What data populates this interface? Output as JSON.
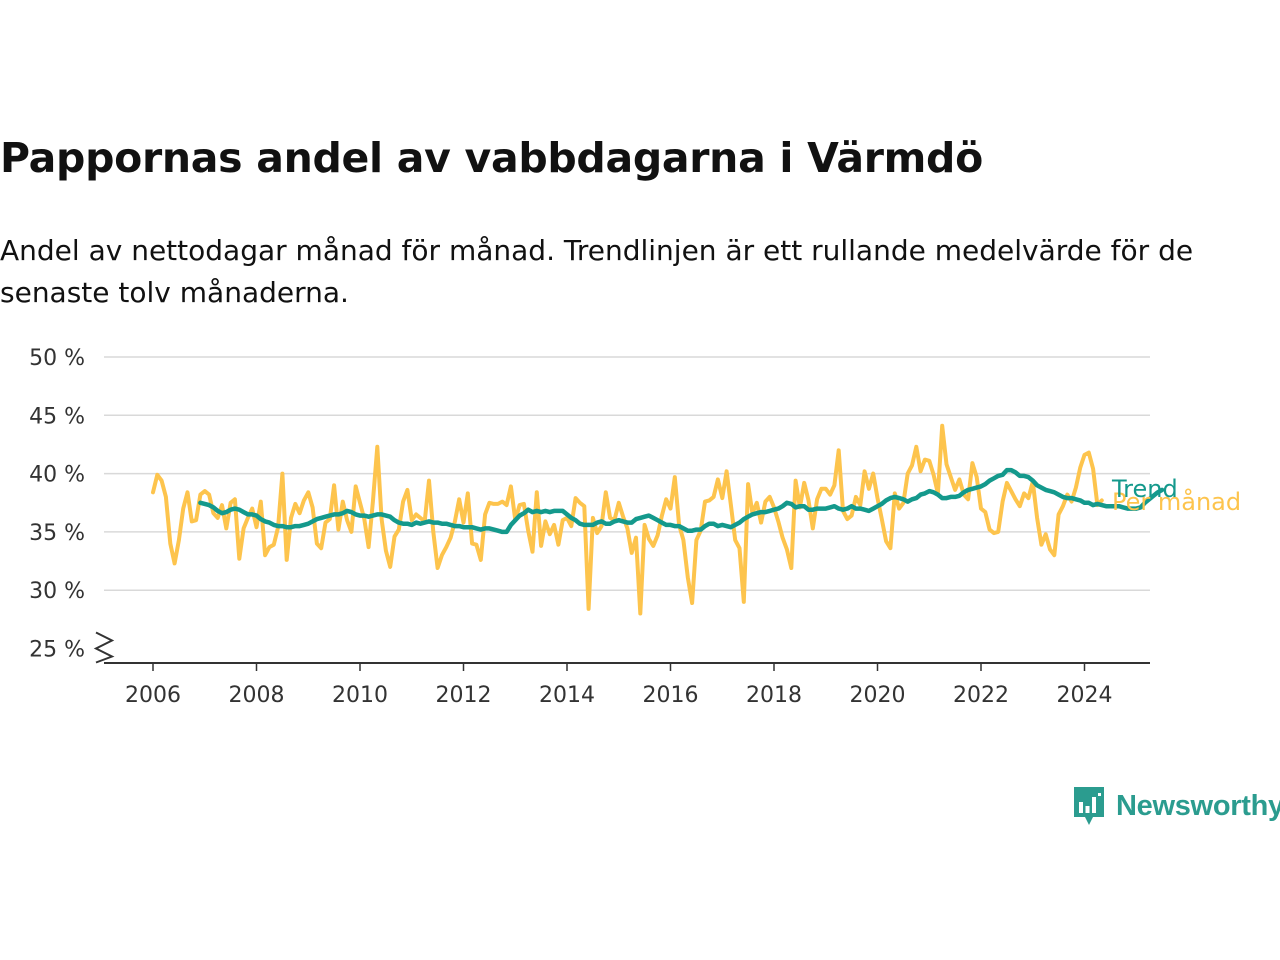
{
  "page": {
    "title": "Pappornas andel av vabbdagarna i Värmdö",
    "subtitle": "Andel av nettodagar månad för månad. Trendlinjen är ett rullande medelvärde för de senaste tolv månaderna.",
    "brand": "Newsworthy"
  },
  "colors": {
    "trend": "#14998c",
    "monthly": "#fdc44d",
    "grid": "#d9d9d9",
    "axis": "#333333"
  },
  "icons": {
    "brand_logo": "bar-chart-speech-bubble-icon",
    "axis_break": "zigzag-axis-break-icon"
  },
  "chart_data": {
    "type": "line",
    "x_type": "month",
    "x_ticks": [
      "2006",
      "2008",
      "2010",
      "2012",
      "2014",
      "2016",
      "2018",
      "2020",
      "2022",
      "2024"
    ],
    "y_ticks": [
      "25 %",
      "30 %",
      "35 %",
      "40 %",
      "45 %",
      "50 %"
    ],
    "y_tick_values": [
      25,
      30,
      35,
      40,
      45,
      50
    ],
    "ylim": [
      24,
      50
    ],
    "y_axis_break": true,
    "grid": "horizontal",
    "legend": "inline labels at line ends (right)",
    "xlabel": "",
    "ylabel": "",
    "series": [
      {
        "name": "Per månad",
        "color": "#fdc44d",
        "start": "2006-01",
        "values": [
          38.4,
          39.9,
          39.4,
          38.0,
          34.0,
          32.3,
          34.3,
          37.0,
          38.4,
          35.9,
          36.0,
          38.2,
          38.5,
          38.2,
          36.6,
          36.2,
          37.3,
          35.3,
          37.5,
          37.8,
          32.7,
          35.3,
          36.2,
          37.0,
          35.4,
          37.6,
          33.0,
          33.7,
          33.9,
          35.4,
          40.0,
          32.6,
          36.2,
          37.4,
          36.6,
          37.7,
          38.4,
          37.1,
          34.0,
          33.6,
          35.8,
          36.1,
          39.0,
          35.2,
          37.6,
          36.0,
          35.0,
          38.9,
          37.5,
          36.1,
          33.7,
          37.6,
          42.3,
          36.1,
          33.4,
          32.0,
          34.6,
          35.2,
          37.6,
          38.6,
          36.0,
          36.5,
          36.2,
          35.9,
          39.4,
          35.0,
          31.9,
          33.0,
          33.7,
          34.5,
          35.9,
          37.8,
          35.8,
          38.3,
          34.0,
          33.9,
          32.6,
          36.5,
          37.5,
          37.4,
          37.4,
          37.6,
          37.3,
          38.9,
          36.0,
          37.3,
          37.4,
          35.1,
          33.3,
          38.4,
          33.8,
          35.9,
          34.8,
          35.6,
          33.9,
          36.0,
          36.2,
          35.5,
          37.9,
          37.5,
          37.2,
          28.4,
          36.2,
          34.9,
          35.5,
          38.4,
          36.2,
          36.0,
          37.5,
          36.3,
          35.3,
          33.2,
          34.5,
          28.0,
          35.6,
          34.4,
          33.8,
          34.7,
          36.4,
          37.8,
          37.0,
          39.7,
          35.6,
          34.3,
          31.1,
          28.9,
          34.3,
          35.1,
          37.6,
          37.7,
          38.0,
          39.5,
          37.9,
          40.2,
          37.3,
          34.3,
          33.6,
          29.0,
          39.1,
          36.6,
          37.5,
          35.8,
          37.6,
          38.0,
          37.1,
          35.9,
          34.5,
          33.5,
          31.9,
          39.4,
          37.1,
          39.2,
          37.7,
          35.3,
          37.8,
          38.7,
          38.7,
          38.2,
          39.0,
          42.0,
          36.8,
          36.1,
          36.4,
          38.0,
          37.3,
          40.2,
          38.7,
          40.0,
          37.9,
          36.1,
          34.2,
          33.6,
          38.3,
          37.0,
          37.5,
          40.0,
          40.7,
          42.3,
          40.2,
          41.2,
          41.1,
          39.9,
          38.3,
          44.1,
          40.8,
          39.7,
          38.6,
          39.5,
          38.2,
          37.8,
          40.9,
          39.7,
          37.0,
          36.7,
          35.2,
          34.9,
          35.0,
          37.6,
          39.2,
          38.5,
          37.8,
          37.2,
          38.3,
          37.9,
          39.3,
          36.2,
          33.9,
          34.8,
          33.5,
          33.0,
          36.5,
          37.2,
          38.2,
          37.6,
          38.8,
          40.5,
          41.6,
          41.8,
          40.4,
          37.3,
          37.7
        ]
      },
      {
        "name": "Trend",
        "color": "#14998c",
        "start": "2006-12",
        "values": [
          37.5,
          37.4,
          37.3,
          37.1,
          36.8,
          36.6,
          36.7,
          36.9,
          37.0,
          36.9,
          36.7,
          36.5,
          36.5,
          36.4,
          36.1,
          35.9,
          35.8,
          35.6,
          35.5,
          35.5,
          35.4,
          35.4,
          35.5,
          35.5,
          35.6,
          35.7,
          35.9,
          36.1,
          36.2,
          36.3,
          36.4,
          36.5,
          36.5,
          36.6,
          36.8,
          36.7,
          36.5,
          36.4,
          36.4,
          36.3,
          36.4,
          36.5,
          36.5,
          36.4,
          36.3,
          36.0,
          35.8,
          35.7,
          35.7,
          35.6,
          35.8,
          35.7,
          35.8,
          35.9,
          35.8,
          35.8,
          35.7,
          35.7,
          35.6,
          35.5,
          35.5,
          35.4,
          35.4,
          35.4,
          35.3,
          35.2,
          35.3,
          35.3,
          35.2,
          35.1,
          35.0,
          35.0,
          35.6,
          36.0,
          36.4,
          36.6,
          36.9,
          36.7,
          36.8,
          36.7,
          36.8,
          36.7,
          36.8,
          36.8,
          36.8,
          36.5,
          36.2,
          36.0,
          35.7,
          35.6,
          35.6,
          35.6,
          35.8,
          35.9,
          35.7,
          35.7,
          35.9,
          36.0,
          35.9,
          35.8,
          35.8,
          36.1,
          36.2,
          36.3,
          36.4,
          36.2,
          36.0,
          35.8,
          35.6,
          35.6,
          35.5,
          35.5,
          35.3,
          35.1,
          35.1,
          35.2,
          35.2,
          35.5,
          35.7,
          35.7,
          35.5,
          35.6,
          35.5,
          35.4,
          35.6,
          35.8,
          36.1,
          36.3,
          36.5,
          36.6,
          36.7,
          36.7,
          36.8,
          36.9,
          37.0,
          37.2,
          37.5,
          37.4,
          37.1,
          37.2,
          37.2,
          36.9,
          36.9,
          37.0,
          37.0,
          37.0,
          37.1,
          37.2,
          37.0,
          36.9,
          37.0,
          37.2,
          37.0,
          37.0,
          36.9,
          36.8,
          37.0,
          37.2,
          37.4,
          37.7,
          37.9,
          38.0,
          37.9,
          37.8,
          37.6,
          37.8,
          37.9,
          38.2,
          38.3,
          38.5,
          38.4,
          38.2,
          37.9,
          37.9,
          38.0,
          38.0,
          38.1,
          38.4,
          38.6,
          38.7,
          38.8,
          38.9,
          39.1,
          39.4,
          39.6,
          39.8,
          39.9,
          40.3,
          40.3,
          40.1,
          39.8,
          39.8,
          39.7,
          39.4,
          39.0,
          38.8,
          38.6,
          38.5,
          38.4,
          38.2,
          38.0,
          37.9,
          37.9,
          37.8,
          37.7,
          37.5,
          37.5,
          37.3,
          37.4,
          37.3,
          37.2,
          37.2,
          37.2,
          37.2,
          37.1,
          37.0,
          37.0,
          37.0,
          37.1,
          37.5,
          37.8,
          38.1,
          38.4,
          38.6
        ]
      }
    ]
  }
}
